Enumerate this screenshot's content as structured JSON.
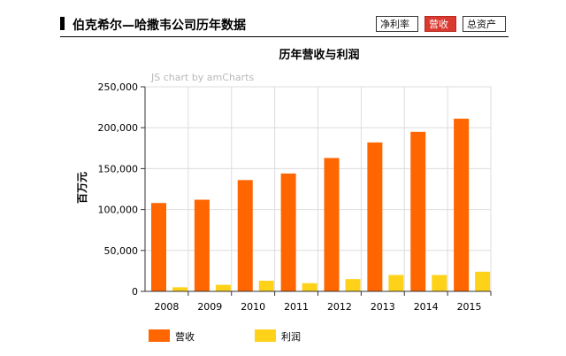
{
  "header": {
    "title": "伯克希尔—哈撒韦公司历年数据",
    "tabs": [
      {
        "label": "净利率",
        "active": false
      },
      {
        "label": "营收",
        "active": true
      },
      {
        "label": "总资产",
        "active": false
      }
    ]
  },
  "watermark": "JS chart by amCharts",
  "colors": {
    "revenue": "#ff6600",
    "profit": "#ffd21a",
    "grid": "#dddddd",
    "axis": "#333333",
    "active_tab": "#d9392f"
  },
  "chart_data": {
    "type": "bar",
    "title": "历年营收与利润",
    "xlabel": "",
    "ylabel": "百万元",
    "categories": [
      "2008",
      "2009",
      "2010",
      "2011",
      "2012",
      "2013",
      "2014",
      "2015"
    ],
    "series": [
      {
        "name": "营收",
        "values": [
          108000,
          112000,
          136000,
          144000,
          163000,
          182000,
          195000,
          211000
        ]
      },
      {
        "name": "利润",
        "values": [
          5000,
          8000,
          13000,
          10000,
          15000,
          20000,
          20000,
          24000
        ]
      }
    ],
    "ylim": [
      0,
      250000
    ],
    "yticks": [
      0,
      50000,
      100000,
      150000,
      200000,
      250000
    ],
    "ytick_labels": [
      "0",
      "50,000",
      "100,000",
      "150,000",
      "200,000",
      "250,000"
    ],
    "grid": true,
    "legend": "bottom-left"
  }
}
